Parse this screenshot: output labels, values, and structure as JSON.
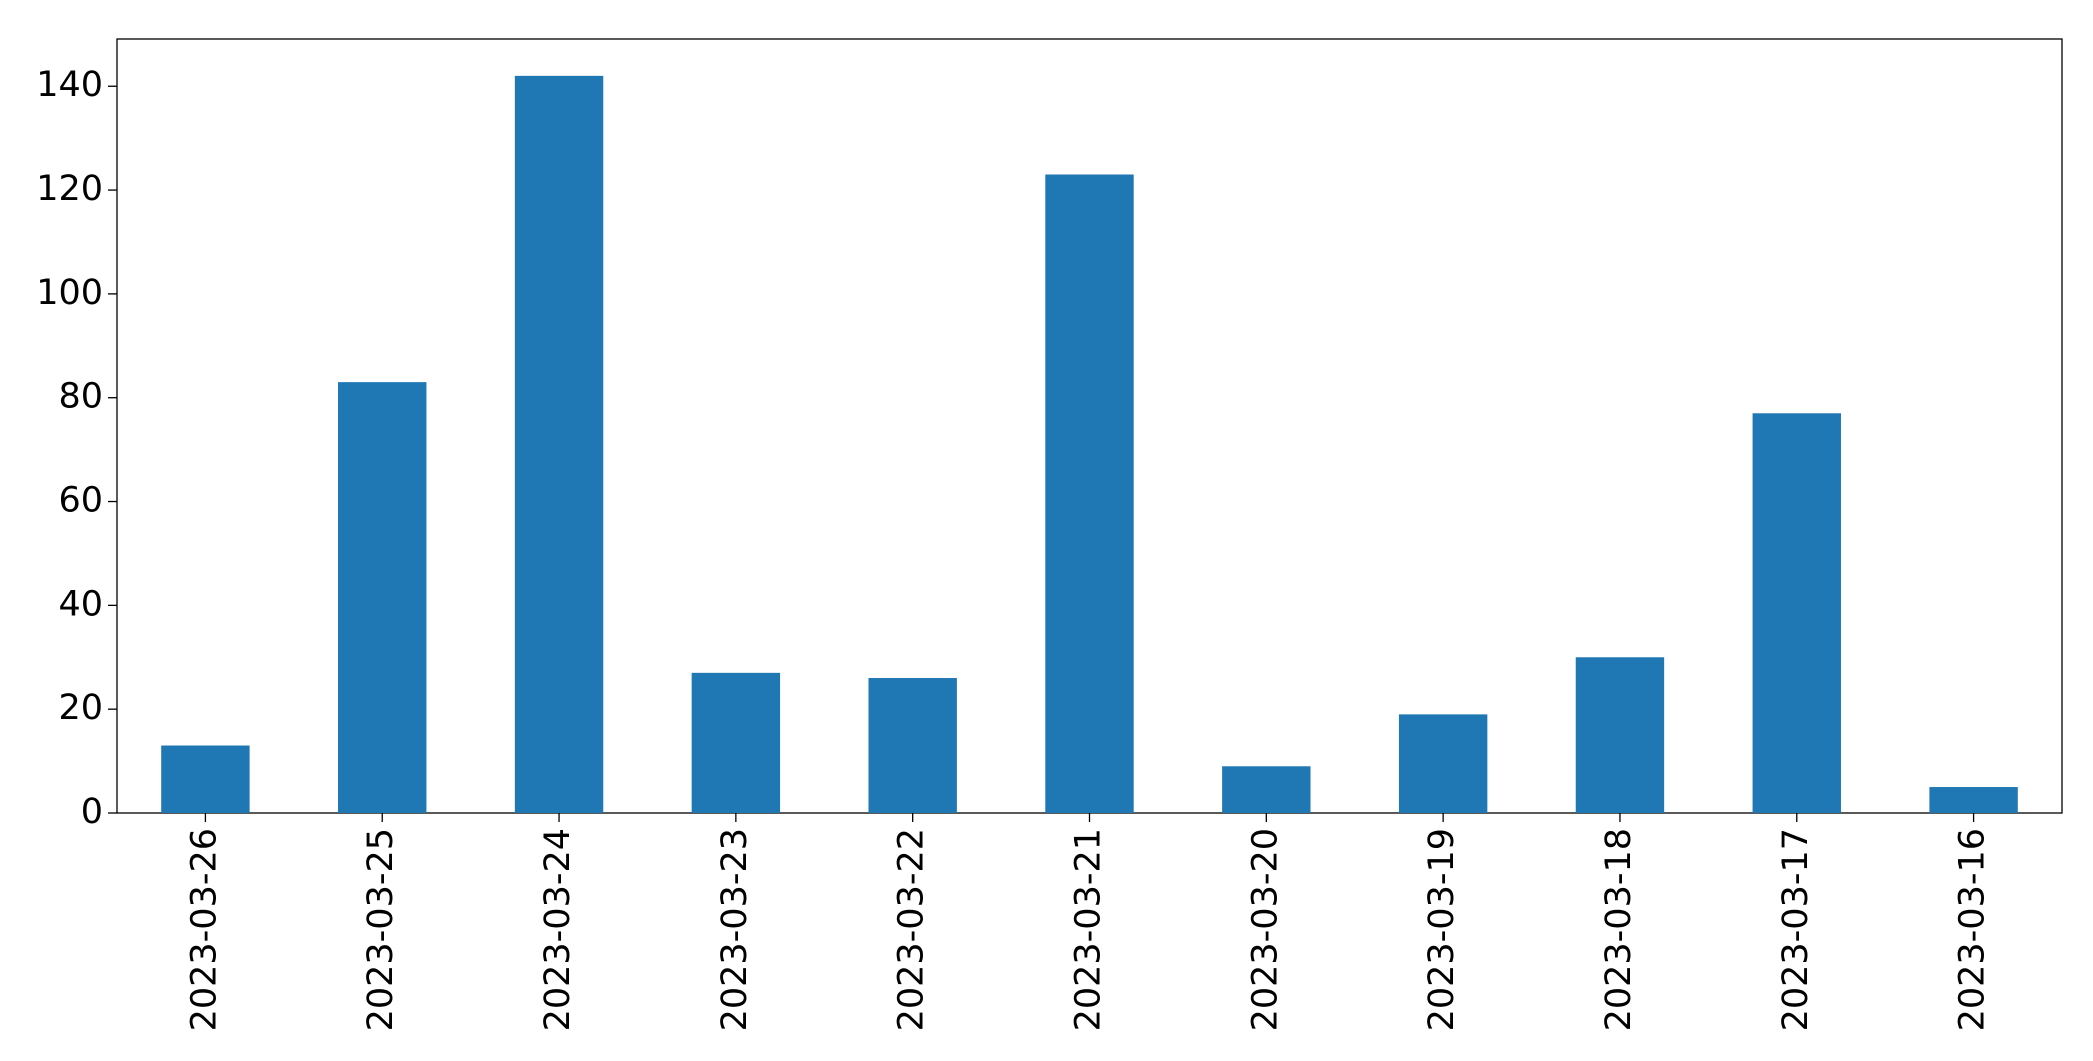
{
  "chart_data": {
    "type": "bar",
    "categories": [
      "2023-03-26",
      "2023-03-25",
      "2023-03-24",
      "2023-03-23",
      "2023-03-22",
      "2023-03-21",
      "2023-03-20",
      "2023-03-19",
      "2023-03-18",
      "2023-03-17",
      "2023-03-16"
    ],
    "values": [
      13,
      83,
      142,
      27,
      26,
      123,
      9,
      19,
      30,
      77,
      5
    ],
    "color": "#1f77b4",
    "ylim": [
      0,
      149.1
    ],
    "yticks": [
      0,
      20,
      40,
      60,
      80,
      100,
      120,
      140
    ],
    "grid": false
  }
}
